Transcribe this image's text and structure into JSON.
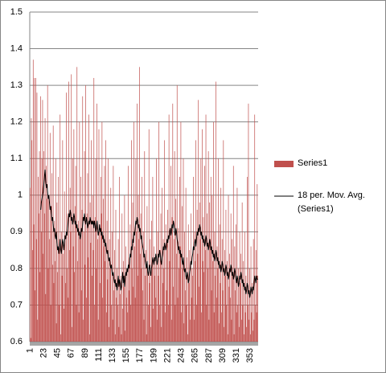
{
  "chart_data": {
    "type": "bar",
    "categories": [
      "1",
      null,
      null,
      null,
      null,
      null,
      null,
      null,
      null,
      null,
      null,
      null,
      null,
      null,
      null,
      null,
      null,
      null,
      null,
      null,
      null,
      null,
      "23",
      null,
      null,
      null,
      null,
      null,
      null,
      null,
      null,
      null,
      null,
      null,
      null,
      null,
      null,
      null,
      null,
      null,
      null,
      null,
      null,
      null,
      "45",
      null,
      null,
      null,
      null,
      null,
      null,
      null,
      null,
      null,
      null,
      null,
      null,
      null,
      null,
      null,
      null,
      null,
      null,
      null,
      null,
      null,
      "67",
      null,
      null,
      null,
      null,
      null,
      null,
      null,
      null,
      null,
      null,
      null,
      null,
      null,
      null,
      null,
      null,
      null,
      null,
      null,
      null,
      null,
      "89",
      null,
      null,
      null,
      null,
      null,
      null,
      null,
      null,
      null,
      null,
      null,
      null,
      null,
      null,
      null,
      null,
      null,
      null,
      null,
      null,
      null,
      "111",
      null,
      null,
      null,
      null,
      null,
      null,
      null,
      null,
      null,
      null,
      null,
      null,
      null,
      null,
      null,
      null,
      null,
      null,
      null,
      null,
      null,
      "133",
      null,
      null,
      null,
      null,
      null,
      null,
      null,
      null,
      null,
      null,
      null,
      null,
      null,
      null,
      null,
      null,
      null,
      null,
      null,
      null,
      null,
      "155",
      null,
      null,
      null,
      null,
      null,
      null,
      null,
      null,
      null,
      null,
      null,
      null,
      null,
      null,
      null,
      null,
      null,
      null,
      null,
      null,
      null,
      "177",
      null,
      null,
      null,
      null,
      null,
      null,
      null,
      null,
      null,
      null,
      null,
      null,
      null,
      null,
      null,
      null,
      null,
      null,
      null,
      null,
      null,
      "199",
      null,
      null,
      null,
      null,
      null,
      null,
      null,
      null,
      null,
      null,
      null,
      null,
      null,
      null,
      null,
      null,
      null,
      null,
      null,
      null,
      null,
      "221",
      null,
      null,
      null,
      null,
      null,
      null,
      null,
      null,
      null,
      null,
      null,
      null,
      null,
      null,
      null,
      null,
      null,
      null,
      null,
      null,
      null,
      "243",
      null,
      null,
      null,
      null,
      null,
      null,
      null,
      null,
      null,
      null,
      null,
      null,
      null,
      null,
      null,
      null,
      null,
      null,
      null,
      null,
      null,
      "265",
      null,
      null,
      null,
      null,
      null,
      null,
      null,
      null,
      null,
      null,
      null,
      null,
      null,
      null,
      null,
      null,
      null,
      null,
      null,
      null,
      null,
      "287",
      null,
      null,
      null,
      null,
      null,
      null,
      null,
      null,
      null,
      null,
      null,
      null,
      null,
      null,
      null,
      null,
      null,
      null,
      null,
      null,
      null,
      "309",
      null,
      null,
      null,
      null,
      null,
      null,
      null,
      null,
      null,
      null,
      null,
      null,
      null,
      null,
      null,
      null,
      null,
      null,
      null,
      null,
      null,
      "331",
      null,
      null,
      null,
      null,
      null,
      null,
      null,
      null,
      null,
      null,
      null,
      null,
      null,
      null,
      null,
      null,
      null,
      null,
      null,
      null,
      null,
      "353",
      null,
      null,
      null,
      null,
      null,
      null,
      null,
      null,
      null,
      null,
      null,
      null
    ],
    "series": [
      {
        "name": "Series1",
        "type": "bar",
        "color": "#c0504d",
        "values": [
          1.02,
          0.61,
          1.21,
          1.15,
          0.85,
          1.37,
          0.92,
          1.32,
          0.74,
          1.32,
          0.88,
          1.28,
          0.66,
          1.05,
          0.95,
          1.12,
          0.79,
          1.27,
          0.9,
          1.1,
          1.26,
          0.84,
          1.12,
          0.95,
          1.21,
          0.73,
          1.08,
          0.99,
          1.3,
          0.8,
          1.0,
          0.88,
          1.17,
          0.7,
          0.97,
          1.06,
          0.81,
          1.19,
          0.76,
          0.93,
          0.82,
          1.1,
          0.65,
          0.98,
          0.79,
          1.05,
          0.7,
          0.88,
          1.22,
          0.62,
          0.9,
          0.78,
          1.15,
          0.84,
          0.69,
          1.01,
          0.88,
          0.76,
          1.28,
          0.8,
          0.95,
          0.72,
          1.31,
          0.85,
          1.02,
          0.9,
          1.33,
          0.64,
          1.1,
          0.86,
          1.18,
          0.79,
          0.97,
          1.08,
          0.7,
          1.35,
          0.82,
          0.93,
          0.68,
          1.2,
          0.88,
          1.05,
          0.74,
          0.96,
          1.27,
          0.66,
          0.9,
          1.12,
          0.81,
          1.3,
          0.72,
          0.95,
          1.06,
          0.83,
          1.22,
          0.62,
          0.98,
          0.87,
          1.15,
          0.78,
          1.0,
          0.85,
          1.32,
          0.7,
          0.94,
          1.1,
          0.8,
          1.25,
          0.88,
          0.66,
          1.18,
          0.9,
          0.76,
          1.05,
          0.95,
          1.2,
          0.72,
          0.99,
          0.86,
          1.08,
          0.82,
          1.15,
          0.68,
          0.93,
          0.77,
          1.1,
          0.64,
          0.88,
          0.8,
          1.02,
          0.7,
          0.9,
          0.66,
          1.08,
          0.74,
          0.85,
          0.62,
          0.96,
          0.72,
          0.8,
          0.7,
          0.88,
          0.64,
          1.05,
          0.73,
          0.78,
          0.62,
          0.95,
          0.69,
          0.82,
          0.75,
          1.0,
          0.63,
          0.86,
          0.72,
          0.79,
          0.68,
          1.08,
          0.74,
          0.83,
          0.92,
          0.7,
          1.15,
          0.8,
          0.98,
          0.75,
          1.2,
          0.86,
          0.72,
          1.1,
          0.9,
          1.25,
          0.78,
          1.0,
          0.88,
          1.35,
          0.84,
          0.95,
          0.8,
          1.05,
          0.74,
          0.9,
          0.66,
          1.12,
          0.78,
          0.85,
          0.62,
          0.97,
          0.8,
          0.7,
          1.18,
          0.76,
          0.88,
          0.64,
          0.93,
          0.81,
          1.05,
          0.69,
          0.86,
          0.78,
          0.83,
          0.72,
          1.1,
          0.66,
          0.9,
          0.78,
          1.2,
          0.7,
          0.85,
          0.95,
          0.64,
          1.02,
          0.76,
          0.88,
          0.8,
          1.15,
          0.68,
          0.92,
          0.74,
          0.87,
          0.96,
          0.7,
          1.22,
          0.82,
          0.9,
          1.08,
          0.66,
          0.94,
          1.25,
          0.75,
          0.88,
          1.12,
          0.7,
          0.99,
          0.84,
          1.3,
          0.72,
          0.91,
          0.8,
          1.05,
          0.86,
          1.2,
          0.68,
          0.97,
          0.8,
          1.1,
          0.65,
          0.9,
          0.74,
          1.02,
          0.7,
          0.83,
          0.62,
          0.92,
          0.76,
          0.85,
          0.66,
          0.95,
          0.72,
          0.8,
          0.78,
          1.05,
          0.66,
          0.9,
          0.82,
          1.15,
          0.7,
          0.96,
          0.84,
          1.26,
          0.75,
          0.98,
          0.88,
          1.1,
          0.68,
          1.18,
          0.82,
          0.94,
          0.79,
          1.08,
          0.85,
          1.22,
          0.7,
          0.95,
          0.8,
          1.12,
          0.66,
          0.98,
          0.88,
          1.05,
          0.74,
          1.0,
          0.82,
          1.2,
          0.68,
          0.9,
          0.78,
          1.31,
          0.72,
          0.86,
          0.8,
          1.1,
          0.65,
          0.92,
          0.76,
          1.02,
          0.68,
          0.88,
          0.74,
          1.15,
          0.64,
          0.85,
          0.78,
          0.96,
          0.7,
          0.82,
          0.62,
          1.0,
          0.75,
          0.84,
          0.72,
          0.95,
          0.66,
          0.88,
          0.78,
          1.08,
          0.62,
          0.86,
          0.74,
          0.92,
          0.68,
          1.02,
          0.7,
          0.8,
          0.64,
          0.9,
          0.76,
          0.84,
          0.66,
          0.98,
          0.7,
          0.82,
          0.62,
          0.9,
          0.68,
          0.78,
          0.64,
          1.05,
          0.7,
          1.25,
          0.66,
          0.8,
          0.62,
          0.86,
          0.68,
          0.76,
          0.63,
          0.88,
          0.66,
          1.22,
          0.7,
          0.85,
          0.68,
          1.03,
          0.78
        ]
      },
      {
        "name": "18 per. Mov. Avg. (Series1)",
        "type": "line",
        "color": "#000000",
        "values": [
          null,
          null,
          null,
          null,
          null,
          null,
          null,
          null,
          null,
          null,
          null,
          null,
          null,
          null,
          null,
          null,
          null,
          0.96,
          0.98,
          0.99,
          1.0,
          1.01,
          1.03,
          1.05,
          1.07,
          1.04,
          1.02,
          1.03,
          1.01,
          0.99,
          1.0,
          0.98,
          0.96,
          0.97,
          0.95,
          0.93,
          0.94,
          0.92,
          0.9,
          0.91,
          0.89,
          0.88,
          0.9,
          0.87,
          0.85,
          0.86,
          0.84,
          0.86,
          0.88,
          0.85,
          0.84,
          0.86,
          0.88,
          0.87,
          0.85,
          0.87,
          0.89,
          0.88,
          0.9,
          0.89,
          0.91,
          0.93,
          0.95,
          0.94,
          0.96,
          0.95,
          0.93,
          0.94,
          0.92,
          0.93,
          0.95,
          0.94,
          0.92,
          0.93,
          0.91,
          0.92,
          0.9,
          0.91,
          0.89,
          0.9,
          0.88,
          0.89,
          0.91,
          0.9,
          0.92,
          0.94,
          0.93,
          0.95,
          0.93,
          0.92,
          0.94,
          0.93,
          0.91,
          0.92,
          0.93,
          0.92,
          0.94,
          0.93,
          0.92,
          0.93,
          0.92,
          0.93,
          0.91,
          0.93,
          0.92,
          0.9,
          0.91,
          0.93,
          0.91,
          0.89,
          0.9,
          0.92,
          0.9,
          0.91,
          0.89,
          0.9,
          0.88,
          0.89,
          0.87,
          0.88,
          0.86,
          0.87,
          0.85,
          0.84,
          0.85,
          0.83,
          0.82,
          0.83,
          0.81,
          0.8,
          0.81,
          0.79,
          0.78,
          0.79,
          0.77,
          0.76,
          0.77,
          0.75,
          0.76,
          0.74,
          0.76,
          0.78,
          0.75,
          0.77,
          0.76,
          0.74,
          0.75,
          0.77,
          0.79,
          0.76,
          0.78,
          0.75,
          0.77,
          0.79,
          0.78,
          0.8,
          0.79,
          0.81,
          0.8,
          0.82,
          0.84,
          0.83,
          0.86,
          0.85,
          0.88,
          0.87,
          0.9,
          0.89,
          0.91,
          0.93,
          0.92,
          0.94,
          0.93,
          0.91,
          0.92,
          0.9,
          0.91,
          0.88,
          0.89,
          0.87,
          0.86,
          0.85,
          0.83,
          0.84,
          0.82,
          0.81,
          0.8,
          0.82,
          0.79,
          0.78,
          0.8,
          0.81,
          0.79,
          0.78,
          0.8,
          0.81,
          0.83,
          0.82,
          0.81,
          0.83,
          0.82,
          0.84,
          0.83,
          0.81,
          0.82,
          0.84,
          0.83,
          0.85,
          0.84,
          0.82,
          0.81,
          0.83,
          0.84,
          0.86,
          0.85,
          0.87,
          0.86,
          0.85,
          0.86,
          0.88,
          0.87,
          0.89,
          0.88,
          0.9,
          0.91,
          0.89,
          0.9,
          0.92,
          0.91,
          0.93,
          0.92,
          0.9,
          0.89,
          0.91,
          0.9,
          0.88,
          0.87,
          0.85,
          0.86,
          0.84,
          0.85,
          0.83,
          0.84,
          0.82,
          0.81,
          0.83,
          0.8,
          0.79,
          0.8,
          0.78,
          0.77,
          0.79,
          0.78,
          0.76,
          0.77,
          0.79,
          0.8,
          0.82,
          0.81,
          0.83,
          0.84,
          0.86,
          0.85,
          0.87,
          0.88,
          0.86,
          0.88,
          0.9,
          0.89,
          0.91,
          0.9,
          0.92,
          0.91,
          0.89,
          0.9,
          0.88,
          0.89,
          0.87,
          0.88,
          0.86,
          0.87,
          0.89,
          0.88,
          0.86,
          0.87,
          0.85,
          0.86,
          0.88,
          0.87,
          0.85,
          0.86,
          0.84,
          0.85,
          0.83,
          0.84,
          0.82,
          0.83,
          0.85,
          0.84,
          0.82,
          0.83,
          0.81,
          0.82,
          0.8,
          0.81,
          0.79,
          0.8,
          0.82,
          0.81,
          0.79,
          0.8,
          0.78,
          0.79,
          0.81,
          0.8,
          0.78,
          0.79,
          0.77,
          0.78,
          0.8,
          0.79,
          0.81,
          0.8,
          0.78,
          0.79,
          0.77,
          0.78,
          0.8,
          0.79,
          0.77,
          0.76,
          0.78,
          0.77,
          0.75,
          0.76,
          0.78,
          0.77,
          0.79,
          0.78,
          0.76,
          0.77,
          0.75,
          0.76,
          0.74,
          0.75,
          0.73,
          0.74,
          0.76,
          0.75,
          0.73,
          0.74,
          0.72,
          0.73,
          0.75,
          0.74,
          0.73,
          0.75,
          0.74,
          0.76,
          0.78,
          0.77,
          0.76,
          0.78,
          0.77,
          0.77
        ]
      }
    ],
    "ylim": [
      0.6,
      1.5
    ],
    "yticks": [
      0.6,
      0.7,
      0.8,
      0.9,
      1,
      1.1,
      1.2,
      1.3,
      1.4,
      1.5
    ],
    "grid": true,
    "legend": "right"
  }
}
